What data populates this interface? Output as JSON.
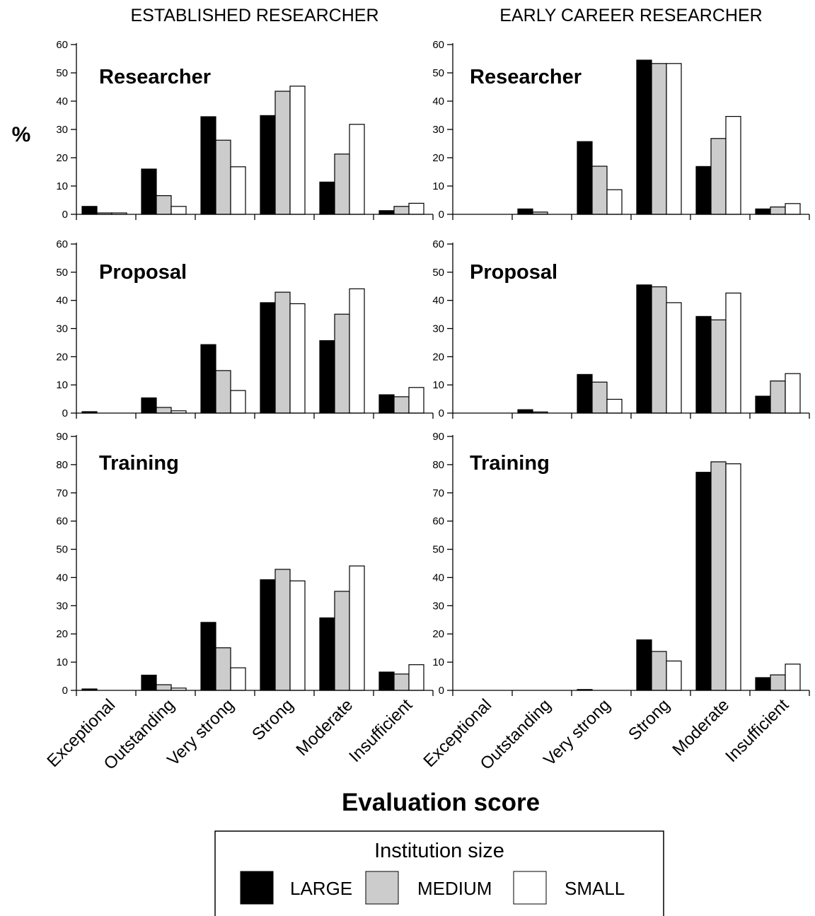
{
  "column_titles": [
    "ESTABLISHED RESEARCHER",
    "EARLY CAREER RESEARCHER"
  ],
  "y_axis_label": "%",
  "x_axis_label": "Evaluation score",
  "legend": {
    "title": "Institution size",
    "entries": [
      "LARGE",
      "MEDIUM",
      "SMALL"
    ]
  },
  "colors": {
    "LARGE": "#000000",
    "MEDIUM": "#cccccc",
    "SMALL": "#ffffff",
    "axis": "#000000"
  },
  "chart_data": [
    {
      "type": "bar",
      "title": "Researcher",
      "column": "ESTABLISHED RESEARCHER",
      "categories": [
        "Exceptional",
        "Outstanding",
        "Very strong",
        "Strong",
        "Moderate",
        "Insufficient"
      ],
      "ylim": [
        0,
        60
      ],
      "yticks": [
        0,
        10,
        20,
        30,
        40,
        50,
        60
      ],
      "series": [
        {
          "name": "LARGE",
          "values": [
            2.8,
            16.0,
            34.5,
            34.9,
            11.4,
            1.3
          ]
        },
        {
          "name": "MEDIUM",
          "values": [
            0.5,
            6.6,
            26.2,
            43.5,
            21.3,
            2.8
          ]
        },
        {
          "name": "SMALL",
          "values": [
            0.5,
            2.8,
            16.8,
            45.3,
            31.8,
            3.9
          ]
        }
      ]
    },
    {
      "type": "bar",
      "title": "Researcher",
      "column": "EARLY CAREER RESEARCHER",
      "categories": [
        "Exceptional",
        "Outstanding",
        "Very strong",
        "Strong",
        "Moderate",
        "Insufficient"
      ],
      "ylim": [
        0,
        60
      ],
      "yticks": [
        0,
        10,
        20,
        30,
        40,
        50,
        60
      ],
      "series": [
        {
          "name": "LARGE",
          "values": [
            0,
            1.9,
            25.7,
            54.5,
            16.9,
            1.9
          ]
        },
        {
          "name": "MEDIUM",
          "values": [
            0,
            0.8,
            17.0,
            53.3,
            26.8,
            2.6
          ]
        },
        {
          "name": "SMALL",
          "values": [
            0,
            0,
            8.7,
            53.3,
            34.6,
            3.8
          ]
        }
      ]
    },
    {
      "type": "bar",
      "title": "Proposal",
      "column": "ESTABLISHED RESEARCHER",
      "categories": [
        "Exceptional",
        "Outstanding",
        "Very strong",
        "Strong",
        "Moderate",
        "Insufficient"
      ],
      "ylim": [
        0,
        60
      ],
      "yticks": [
        0,
        10,
        20,
        30,
        40,
        50,
        60
      ],
      "series": [
        {
          "name": "LARGE",
          "values": [
            0.5,
            5.4,
            24.3,
            39.2,
            25.7,
            6.5
          ]
        },
        {
          "name": "MEDIUM",
          "values": [
            0,
            2.0,
            15.1,
            42.9,
            35.1,
            5.8
          ]
        },
        {
          "name": "SMALL",
          "values": [
            0,
            0.8,
            8.0,
            38.8,
            44.1,
            9.1
          ]
        }
      ]
    },
    {
      "type": "bar",
      "title": "Proposal",
      "column": "EARLY CAREER RESEARCHER",
      "categories": [
        "Exceptional",
        "Outstanding",
        "Very strong",
        "Strong",
        "Moderate",
        "Insufficient"
      ],
      "ylim": [
        0,
        60
      ],
      "yticks": [
        0,
        10,
        20,
        30,
        40,
        50,
        60
      ],
      "series": [
        {
          "name": "LARGE",
          "values": [
            0,
            1.2,
            13.7,
            45.5,
            34.3,
            6.0
          ]
        },
        {
          "name": "MEDIUM",
          "values": [
            0,
            0.4,
            11.0,
            44.8,
            33.1,
            11.4
          ]
        },
        {
          "name": "SMALL",
          "values": [
            0,
            0,
            4.9,
            39.2,
            42.6,
            14.0
          ]
        }
      ]
    },
    {
      "type": "bar",
      "title": "Training",
      "column": "ESTABLISHED RESEARCHER",
      "categories": [
        "Exceptional",
        "Outstanding",
        "Very strong",
        "Strong",
        "Moderate",
        "Insufficient"
      ],
      "ylim": [
        0,
        90
      ],
      "yticks": [
        0,
        10,
        20,
        30,
        40,
        50,
        60,
        70,
        80,
        90
      ],
      "series": [
        {
          "name": "LARGE",
          "values": [
            0.5,
            5.4,
            24.1,
            39.2,
            25.7,
            6.5
          ]
        },
        {
          "name": "MEDIUM",
          "values": [
            0,
            2.0,
            15.1,
            42.9,
            35.1,
            5.8
          ]
        },
        {
          "name": "SMALL",
          "values": [
            0,
            0.8,
            8.0,
            38.8,
            44.1,
            9.1
          ]
        }
      ]
    },
    {
      "type": "bar",
      "title": "Training",
      "column": "EARLY CAREER RESEARCHER",
      "categories": [
        "Exceptional",
        "Outstanding",
        "Very strong",
        "Strong",
        "Moderate",
        "Insufficient"
      ],
      "ylim": [
        0,
        90
      ],
      "yticks": [
        0,
        10,
        20,
        30,
        40,
        50,
        60,
        70,
        80,
        90
      ],
      "series": [
        {
          "name": "LARGE",
          "values": [
            0,
            0,
            0.3,
            17.9,
            77.3,
            4.5
          ]
        },
        {
          "name": "MEDIUM",
          "values": [
            0,
            0,
            0,
            13.8,
            81.0,
            5.5
          ]
        },
        {
          "name": "SMALL",
          "values": [
            0,
            0,
            0,
            10.4,
            80.3,
            9.3
          ]
        }
      ]
    }
  ]
}
